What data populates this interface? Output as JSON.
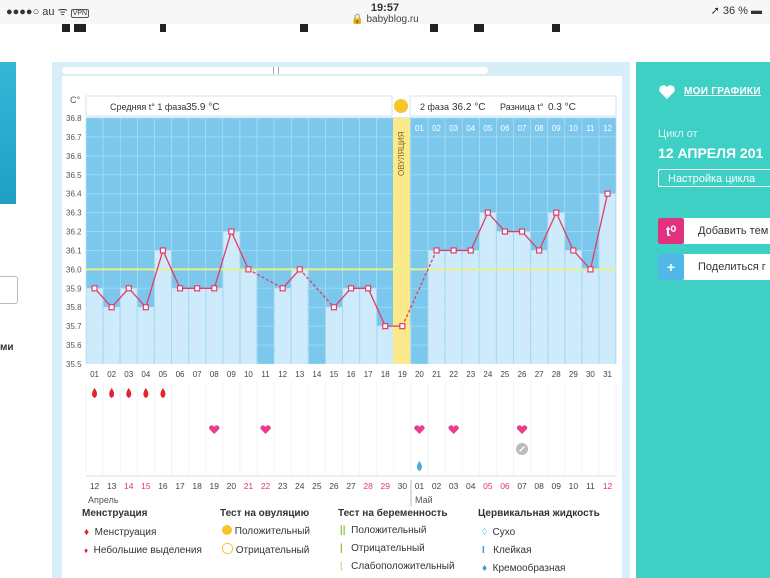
{
  "status_bar": {
    "carrier": "au",
    "vpn": "VPN",
    "time": "19:57",
    "url": "babyblog.ru",
    "battery": "36 %"
  },
  "left_panel": {
    "partial_text": "ми"
  },
  "right_panel": {
    "my_charts": "МОИ ГРАФИКИ",
    "cycle_from": "Цикл от",
    "cycle_date": "12 АПРЕЛЯ 201",
    "cycle_settings": "Настройка цикла",
    "add_topic": "Добавить тем",
    "add_topic_icon_text": "t⁰",
    "share": "Поделиться г",
    "share_icon_text": "+"
  },
  "header": {
    "unit": "C°",
    "phase1_label": "Средняя t° 1 фаза",
    "phase1_value": "35.9 °C",
    "phase2_label": "2 фаза",
    "phase2_value": "36.2 °C",
    "diff_label": "Разница t°",
    "diff_value": "0.3 °C",
    "ovulation_label": "ОВУЛЯЦИЯ"
  },
  "colors": {
    "blue_bg": "#7cc8ec",
    "bar": "#cdebfa",
    "line": "#e23c6a",
    "ovulation": "#fce98c",
    "avg_line": "#e8f08a",
    "panel": "#3ed0c4"
  },
  "chart_data": {
    "type": "line",
    "y_ticks": [
      "36.8",
      "36.7",
      "36.6",
      "36.5",
      "36.4",
      "36.3",
      "36.2",
      "36.1",
      "36.0",
      "35.9",
      "35.8",
      "35.7",
      "35.6",
      "35.5"
    ],
    "ylim": [
      35.5,
      36.8
    ],
    "cycle_days": [
      "01",
      "02",
      "03",
      "04",
      "05",
      "06",
      "07",
      "08",
      "09",
      "10",
      "11",
      "12",
      "13",
      "14",
      "15",
      "16",
      "17",
      "18",
      "19",
      "20",
      "21",
      "22",
      "23",
      "24",
      "25",
      "26",
      "27",
      "28",
      "29",
      "30",
      "31"
    ],
    "top_days_phase2": [
      "01",
      "02",
      "03",
      "04",
      "05",
      "06",
      "07",
      "08",
      "09",
      "10",
      "11",
      "12"
    ],
    "temperatures": [
      35.9,
      35.8,
      35.9,
      35.8,
      36.1,
      35.9,
      35.9,
      35.9,
      36.2,
      36.0,
      null,
      35.9,
      36.0,
      null,
      35.8,
      35.9,
      35.9,
      35.7,
      35.7,
      null,
      36.1,
      36.1,
      36.1,
      36.3,
      36.2,
      36.2,
      36.1,
      36.3,
      36.1,
      36.0,
      36.4
    ],
    "average_line": 36.0,
    "ovulation_day": 19,
    "menstruation_days": [
      1,
      2,
      3,
      4,
      5
    ],
    "ovulation_test_positive_days": [
      8,
      11,
      20,
      22,
      26
    ],
    "cervical_fluid_days": [
      {
        "day": 20,
        "type": "Кремообразная"
      }
    ],
    "note_days": [
      25
    ],
    "calendar_dates": [
      "12",
      "13",
      "14",
      "15",
      "16",
      "17",
      "18",
      "19",
      "20",
      "21",
      "22",
      "23",
      "24",
      "25",
      "26",
      "27",
      "28",
      "29",
      "30",
      "01",
      "02",
      "03",
      "04",
      "05",
      "06",
      "07",
      "08",
      "09",
      "10",
      "11",
      "12"
    ],
    "calendar_red_dates": [
      2,
      3,
      9,
      10,
      16,
      17,
      23,
      24,
      30
    ],
    "month_april": "Апрель",
    "month_may": "Май"
  },
  "legend": {
    "menstruation": {
      "title": "Менструация",
      "items": [
        "Менструация",
        "Небольшие выделения"
      ]
    },
    "ovulation_test": {
      "title": "Тест на овуляцию",
      "items": [
        "Положительный",
        "Отрицательный"
      ]
    },
    "pregnancy_test": {
      "title": "Тест на беременность",
      "items": [
        "Положительный",
        "Отрицательный",
        "Слабоположительный"
      ]
    },
    "cervical": {
      "title": "Цервикальная жидкость",
      "items": [
        "Сухо",
        "Клейкая",
        "Кремообразная"
      ]
    }
  }
}
